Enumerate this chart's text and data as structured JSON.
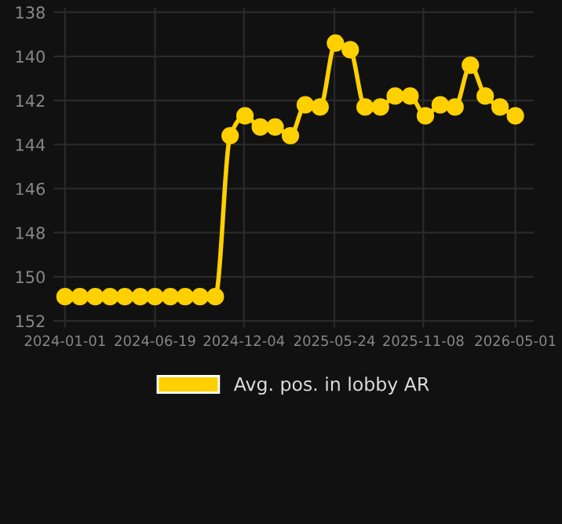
{
  "chart_data": {
    "type": "line",
    "x": [
      "2024-01-01",
      "2024-01-29",
      "2024-02-27",
      "2024-03-26",
      "2024-04-23",
      "2024-05-22",
      "2024-06-19",
      "2024-07-18",
      "2024-08-15",
      "2024-09-12",
      "2024-10-11",
      "2024-11-08",
      "2024-12-06",
      "2025-01-04",
      "2025-02-01",
      "2025-03-02",
      "2025-03-30",
      "2025-04-27",
      "2025-05-26",
      "2025-06-23",
      "2025-07-21",
      "2025-08-19",
      "2025-09-16",
      "2025-10-14",
      "2025-11-12",
      "2025-12-10",
      "2026-01-07",
      "2026-02-05",
      "2026-03-05",
      "2026-04-02",
      "2026-05-01"
    ],
    "series": [
      {
        "name": "Avg. pos. in lobby AR",
        "color": "#ffd000",
        "values": [
          150.9,
          150.9,
          150.9,
          150.9,
          150.9,
          150.9,
          150.9,
          150.9,
          150.9,
          150.9,
          150.9,
          143.6,
          142.7,
          143.2,
          143.2,
          143.6,
          142.2,
          142.3,
          139.4,
          139.7,
          142.3,
          142.3,
          141.8,
          141.8,
          142.7,
          142.2,
          142.3,
          140.4,
          141.8,
          142.3,
          142.7
        ]
      }
    ],
    "ylim": [
      152.3,
      137.8
    ],
    "yticks": [
      138,
      140,
      142,
      144,
      146,
      148,
      150,
      152
    ],
    "xlim": [
      "2023-12-10",
      "2026-06-05"
    ],
    "xticks": [
      "2024-01-01",
      "2024-06-19",
      "2024-12-04",
      "2025-05-24",
      "2025-11-08",
      "2026-05-01"
    ],
    "grid": true,
    "legend": "bottom",
    "marker": "circle",
    "line_style": "solid"
  }
}
